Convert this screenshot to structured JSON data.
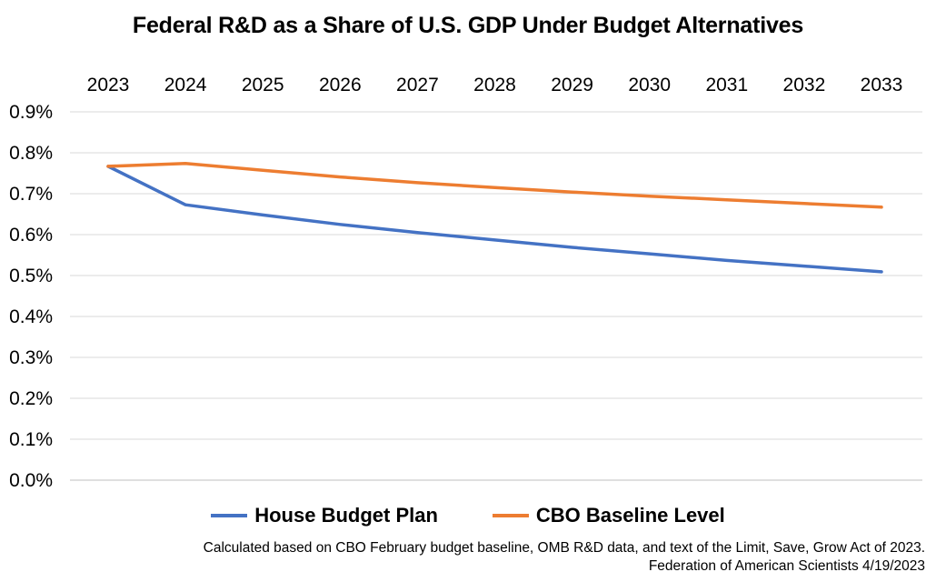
{
  "chart_data": {
    "type": "line",
    "title": "Federal R&D as a Share of U.S. GDP Under Budget Alternatives",
    "xlabel": "",
    "ylabel": "",
    "categories": [
      "2023",
      "2024",
      "2025",
      "2026",
      "2027",
      "2028",
      "2029",
      "2030",
      "2031",
      "2032",
      "2033"
    ],
    "yticks": [
      "0.0%",
      "0.1%",
      "0.2%",
      "0.3%",
      "0.4%",
      "0.5%",
      "0.6%",
      "0.7%",
      "0.8%",
      "0.9%"
    ],
    "ylim": [
      0,
      0.9
    ],
    "x_axis_position": "top",
    "grid": true,
    "legend_position": "bottom",
    "series": [
      {
        "name": "House Budget Plan",
        "color": "#4472C4",
        "values": [
          0.767,
          0.673,
          0.648,
          0.625,
          0.605,
          0.587,
          0.569,
          0.553,
          0.537,
          0.523,
          0.509
        ]
      },
      {
        "name": "CBO Baseline Level",
        "color": "#ED7D31",
        "values": [
          0.767,
          0.774,
          0.757,
          0.741,
          0.727,
          0.715,
          0.704,
          0.694,
          0.685,
          0.676,
          0.667
        ]
      }
    ]
  },
  "footnotes": [
    "Calculated based on CBO February budget baseline, OMB R&D data, and text of the Limit, Save, Grow Act of 2023.",
    "Federation of American Scientists 4/19/2023"
  ]
}
